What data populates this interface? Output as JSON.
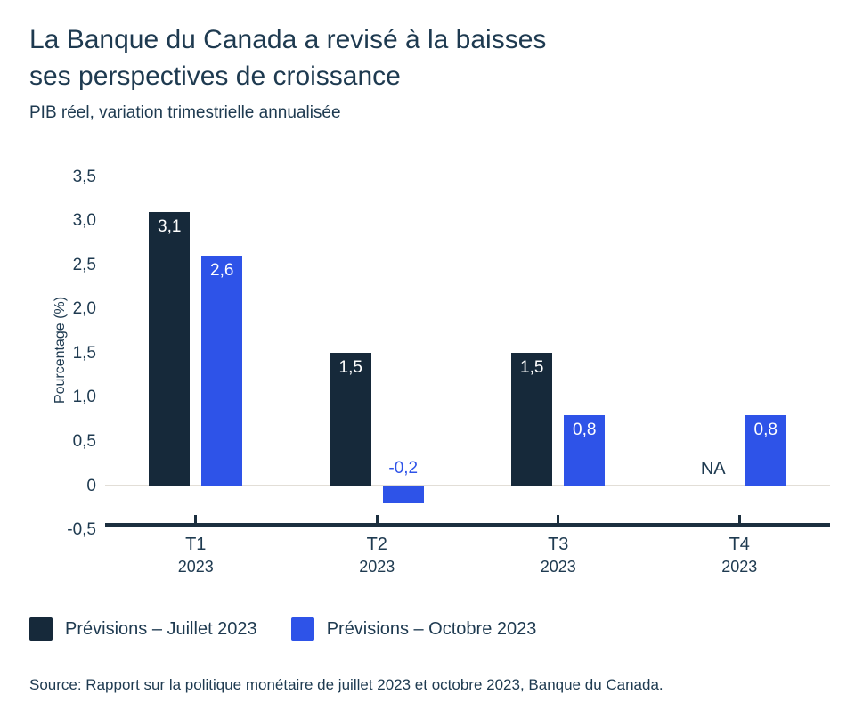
{
  "title": {
    "line1": "La Banque du Canada a revisé à la baisses",
    "line2": "ses perspectives de croissance"
  },
  "subtitle": "PIB réel, variation trimestrielle annualisée",
  "source": "Source: Rapport sur la politique monétaire de juillet 2023 et octobre 2023, Banque du Canada.",
  "colors": {
    "navy": "#16293A",
    "blue": "#2E53E8",
    "text": "#1E3A50",
    "axis": "#1C2F3F",
    "zero_line": "#E2DED7",
    "background": "#FFFFFF"
  },
  "chart_data": {
    "type": "bar",
    "title": "La Banque du Canada a revisé à la baisses ses perspectives de croissance",
    "subtitle": "PIB réel, variation trimestrielle annualisée",
    "xlabel": "",
    "ylabel": "Pourcentage (%)",
    "ylim": [
      -0.5,
      3.5
    ],
    "ytick_step": 0.5,
    "yticks": [
      {
        "value": 3.5,
        "label": "3,5"
      },
      {
        "value": 3.0,
        "label": "3,0"
      },
      {
        "value": 2.5,
        "label": "2,5"
      },
      {
        "value": 2.0,
        "label": "2,0"
      },
      {
        "value": 1.5,
        "label": "1,5"
      },
      {
        "value": 1.0,
        "label": "1,0"
      },
      {
        "value": 0.5,
        "label": "0,5"
      },
      {
        "value": 0.0,
        "label": "0"
      },
      {
        "value": -0.5,
        "label": "-0,5"
      }
    ],
    "categories": [
      {
        "quarter": "T1",
        "year": "2023"
      },
      {
        "quarter": "T2",
        "year": "2023"
      },
      {
        "quarter": "T3",
        "year": "2023"
      },
      {
        "quarter": "T4",
        "year": "2023"
      }
    ],
    "series": [
      {
        "name": "Prévisions – Juillet 2023",
        "id": "juillet",
        "color": "#16293A",
        "values": [
          3.1,
          1.5,
          1.5,
          null
        ],
        "labels": [
          "3,1",
          "1,5",
          "1,5",
          "NA"
        ]
      },
      {
        "name": "Prévisions – Octobre 2023",
        "id": "octobre",
        "color": "#2E53E8",
        "values": [
          2.6,
          -0.2,
          0.8,
          0.8
        ],
        "labels": [
          "2,6",
          "-0,2",
          "0,8",
          "0,8"
        ]
      }
    ],
    "grid": "zero-line-only",
    "legend_position": "bottom"
  }
}
